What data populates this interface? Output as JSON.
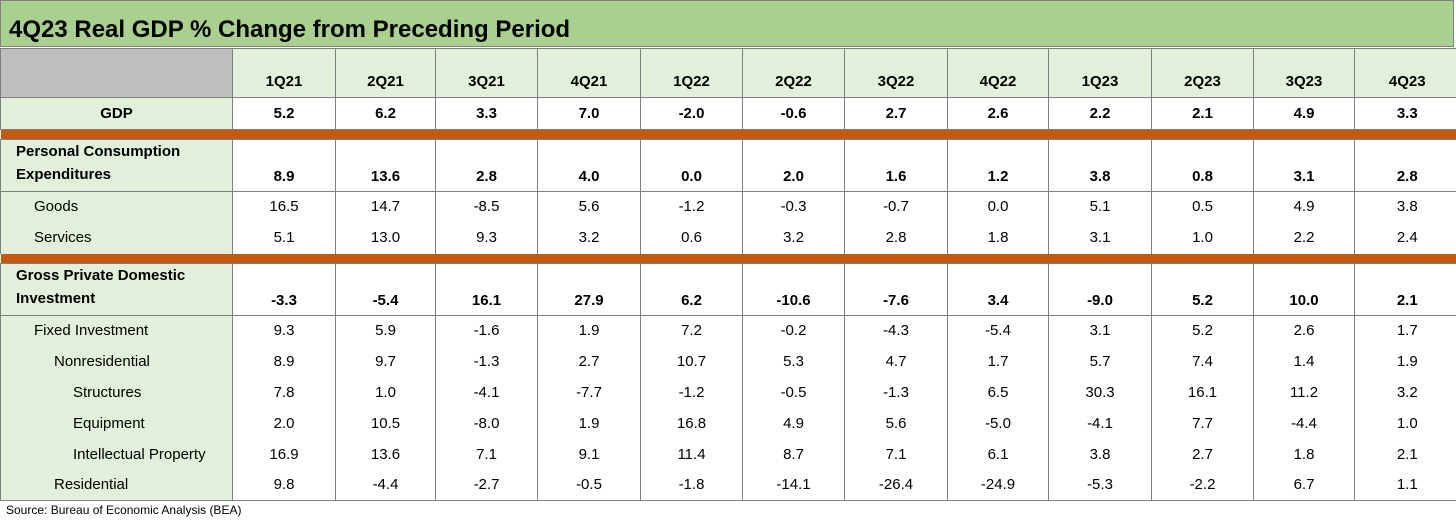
{
  "title": "4Q23 Real GDP % Change from Preceding Period",
  "columns": [
    "1Q21",
    "2Q21",
    "3Q21",
    "4Q21",
    "1Q22",
    "2Q22",
    "3Q22",
    "4Q22",
    "1Q23",
    "2Q23",
    "3Q23",
    "4Q23"
  ],
  "gdp": {
    "label": "GDP",
    "values": [
      "5.2",
      "6.2",
      "3.3",
      "7.0",
      "-2.0",
      "-0.6",
      "2.7",
      "2.6",
      "2.2",
      "2.1",
      "4.9",
      "3.3"
    ]
  },
  "pce": {
    "label": "Personal Consumption Expenditures",
    "values": [
      "8.9",
      "13.6",
      "2.8",
      "4.0",
      "0.0",
      "2.0",
      "1.6",
      "1.2",
      "3.8",
      "0.8",
      "3.1",
      "2.8"
    ],
    "rows": [
      {
        "label": "Goods",
        "values": [
          "16.5",
          "14.7",
          "-8.5",
          "5.6",
          "-1.2",
          "-0.3",
          "-0.7",
          "0.0",
          "5.1",
          "0.5",
          "4.9",
          "3.8"
        ]
      },
      {
        "label": "Services",
        "values": [
          "5.1",
          "13.0",
          "9.3",
          "3.2",
          "0.6",
          "3.2",
          "2.8",
          "1.8",
          "3.1",
          "1.0",
          "2.2",
          "2.4"
        ]
      }
    ]
  },
  "gpdi": {
    "label": "Gross Private Domestic Investment",
    "values": [
      "-3.3",
      "-5.4",
      "16.1",
      "27.9",
      "6.2",
      "-10.6",
      "-7.6",
      "3.4",
      "-9.0",
      "5.2",
      "10.0",
      "2.1"
    ],
    "rows": [
      {
        "label": "Fixed Investment",
        "values": [
          "9.3",
          "5.9",
          "-1.6",
          "1.9",
          "7.2",
          "-0.2",
          "-4.3",
          "-5.4",
          "3.1",
          "5.2",
          "2.6",
          "1.7"
        ]
      },
      {
        "label": "Nonresidential",
        "values": [
          "8.9",
          "9.7",
          "-1.3",
          "2.7",
          "10.7",
          "5.3",
          "4.7",
          "1.7",
          "5.7",
          "7.4",
          "1.4",
          "1.9"
        ]
      },
      {
        "label": "Structures",
        "values": [
          "7.8",
          "1.0",
          "-4.1",
          "-7.7",
          "-1.2",
          "-0.5",
          "-1.3",
          "6.5",
          "30.3",
          "16.1",
          "11.2",
          "3.2"
        ]
      },
      {
        "label": "Equipment",
        "values": [
          "2.0",
          "10.5",
          "-8.0",
          "1.9",
          "16.8",
          "4.9",
          "5.6",
          "-5.0",
          "-4.1",
          "7.7",
          "-4.4",
          "1.0"
        ]
      },
      {
        "label": "Intellectual Property",
        "values": [
          "16.9",
          "13.6",
          "7.1",
          "9.1",
          "11.4",
          "8.7",
          "7.1",
          "6.1",
          "3.8",
          "2.7",
          "1.8",
          "2.1"
        ]
      },
      {
        "label": "Residential",
        "values": [
          "9.8",
          "-4.4",
          "-2.7",
          "-0.5",
          "-1.8",
          "-14.1",
          "-26.4",
          "-24.9",
          "-5.3",
          "-2.2",
          "6.7",
          "1.1"
        ]
      }
    ]
  },
  "source": "Source: Bureau of Economic Analysis (BEA)"
}
